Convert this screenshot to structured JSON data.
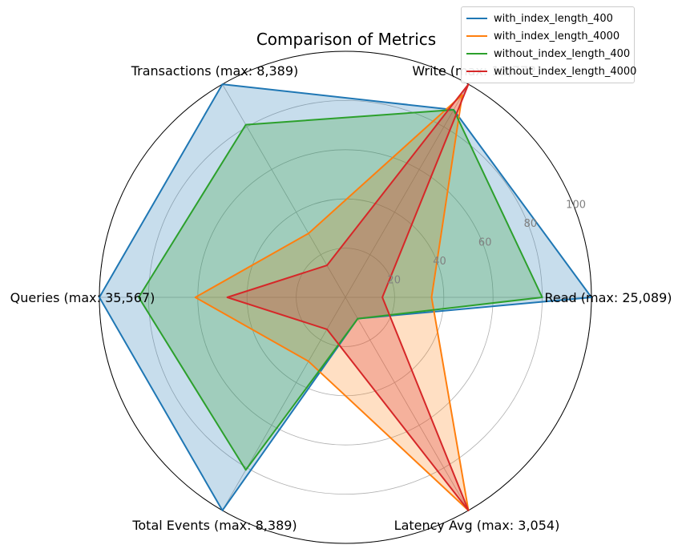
{
  "chart_data": {
    "type": "radar",
    "title": "Comparison of Metrics",
    "axes": [
      "Read  (max: 25,089)",
      "Write (max: 12,772)",
      "Transactions (max: 8,389)",
      "Queries (max: 35,567)",
      "Total Events (max: 8,389)",
      "Latency Avg (max: 3,054)"
    ],
    "r_ticks": [
      "20",
      "40",
      "60",
      "80",
      "100"
    ],
    "rlim": [
      0,
      100
    ],
    "grid": true,
    "legend_position": "top-right",
    "series": [
      {
        "name": "with_index_length_400",
        "color": "#1f77b4",
        "values": [
          100,
          88,
          100,
          100,
          100,
          10
        ]
      },
      {
        "name": "with_index_length_4000",
        "color": "#ff7f0e",
        "values": [
          35,
          95,
          30,
          61,
          30,
          100
        ]
      },
      {
        "name": "without_index_length_400",
        "color": "#2ca02c",
        "values": [
          80,
          88,
          81,
          84,
          81,
          10
        ]
      },
      {
        "name": "without_index_length_4000",
        "color": "#d62728",
        "values": [
          15,
          100,
          15,
          48,
          15,
          100
        ]
      }
    ]
  }
}
